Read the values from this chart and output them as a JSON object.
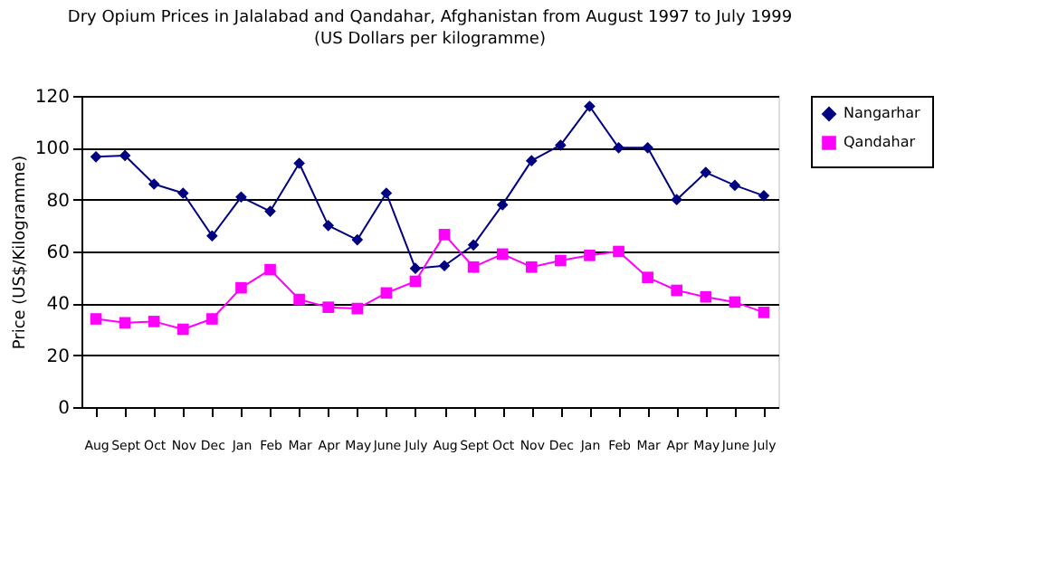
{
  "chart_data": {
    "type": "line",
    "title": "Dry Opium Prices in Jalalabad and Qandahar, Afghanistan from August 1997 to July 1999",
    "subtitle": "(US Dollars per kilogramme)",
    "ylabel": "Price (US$/Kilogramme)",
    "categories": [
      "Aug",
      "Sept",
      "Oct",
      "Nov",
      "Dec",
      "Jan",
      "Feb",
      "Mar",
      "Apr",
      "May",
      "June",
      "July",
      "Aug",
      "Sept",
      "Oct",
      "Nov",
      "Dec",
      "Jan",
      "Feb",
      "Mar",
      "Apr",
      "May",
      "June",
      "July"
    ],
    "series": [
      {
        "name": "Nangarhar",
        "color": "#000080",
        "marker": "diamond",
        "values": [
          96.5,
          97,
          86,
          82.5,
          66,
          81,
          75.5,
          94,
          70,
          64.5,
          82.5,
          53.5,
          54.5,
          62.5,
          78,
          95,
          101,
          116,
          100,
          100,
          80,
          90.5,
          85.5,
          81.5
        ]
      },
      {
        "name": "Qandahar",
        "color": "#ff00ff",
        "marker": "square",
        "values": [
          34,
          32.5,
          33,
          30,
          34,
          46,
          53,
          41.5,
          38.5,
          38,
          44,
          48.5,
          66.5,
          54,
          59,
          54,
          56.5,
          58.5,
          60,
          50,
          45,
          42.5,
          40.5,
          36.5
        ]
      }
    ],
    "ylim": [
      0,
      120
    ],
    "yticks": [
      0,
      20,
      40,
      60,
      80,
      100,
      120
    ],
    "grid": "y",
    "legend": "right",
    "line_style": "solid"
  }
}
